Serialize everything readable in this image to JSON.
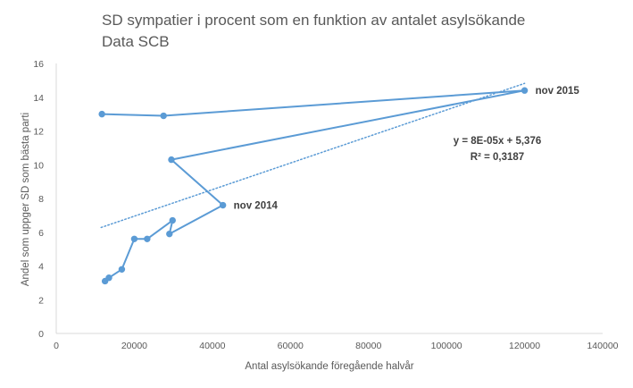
{
  "chart_data": {
    "type": "scatter",
    "title": "SD sympatier  i procent som en funktion av antalet asylsökande",
    "subtitle": "Data SCB",
    "xlabel": "Antal asylsökande föregående halvår",
    "ylabel": "Andel som uppger SD som  bästa parti",
    "xlim": [
      0,
      140000
    ],
    "ylim": [
      0,
      16
    ],
    "x_ticks": [
      0,
      20000,
      40000,
      60000,
      80000,
      100000,
      120000,
      140000
    ],
    "y_ticks": [
      0,
      2,
      4,
      6,
      8,
      10,
      12,
      14,
      16
    ],
    "grid": false,
    "series": [
      {
        "color": "#5b9bd5",
        "connected": true,
        "points": [
          {
            "x": 12500,
            "y": 3.1
          },
          {
            "x": 13500,
            "y": 3.3
          },
          {
            "x": 16800,
            "y": 3.8
          },
          {
            "x": 20000,
            "y": 5.6
          },
          {
            "x": 23300,
            "y": 5.6
          },
          {
            "x": 29800,
            "y": 6.7
          },
          {
            "x": 29000,
            "y": 5.9
          },
          {
            "x": 42700,
            "y": 7.6
          },
          {
            "x": 29500,
            "y": 10.3
          },
          {
            "x": 120000,
            "y": 14.4
          },
          {
            "x": 27500,
            "y": 12.9
          },
          {
            "x": 11700,
            "y": 13.0
          }
        ]
      }
    ],
    "trendline": {
      "style": "dotted",
      "color": "#5b9bd5",
      "x_range": [
        11500,
        120000
      ],
      "slope": 7.87e-05,
      "intercept": 5.376,
      "equation": "y = 8E-05x + 5,376",
      "r_squared": "R² = 0,3187"
    },
    "annotations": [
      {
        "text": "nov 2015",
        "x": 120000,
        "y": 14.4
      },
      {
        "text": "nov 2014",
        "x": 42700,
        "y": 7.6
      }
    ]
  }
}
